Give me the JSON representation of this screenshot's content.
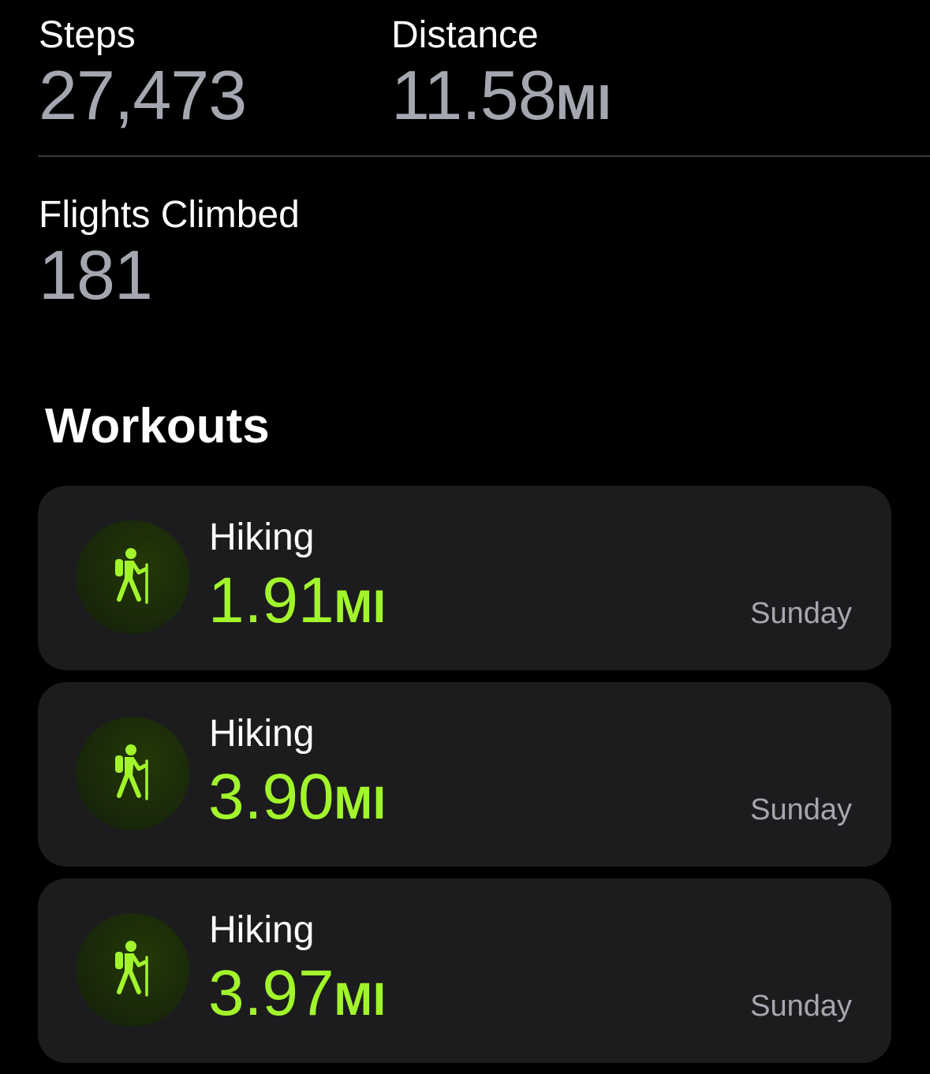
{
  "summary": {
    "steps": {
      "label": "Steps",
      "value": "27,473",
      "unit": ""
    },
    "distance": {
      "label": "Distance",
      "value": "11.58",
      "unit": "MI"
    },
    "flights": {
      "label": "Flights Climbed",
      "value": "181",
      "unit": ""
    }
  },
  "workouts": {
    "title": "Workouts",
    "items": [
      {
        "type": "Hiking",
        "value": "1.91",
        "unit": "MI",
        "day": "Sunday",
        "icon": "hiking-icon"
      },
      {
        "type": "Hiking",
        "value": "3.90",
        "unit": "MI",
        "day": "Sunday",
        "icon": "hiking-icon"
      },
      {
        "type": "Hiking",
        "value": "3.97",
        "unit": "MI",
        "day": "Sunday",
        "icon": "hiking-icon"
      }
    ]
  },
  "colors": {
    "background": "#000000",
    "card": "#1c1c1e",
    "accent_green": "#a2f52b",
    "value_gray": "#a5a7b0",
    "label_white": "#ffffff"
  }
}
